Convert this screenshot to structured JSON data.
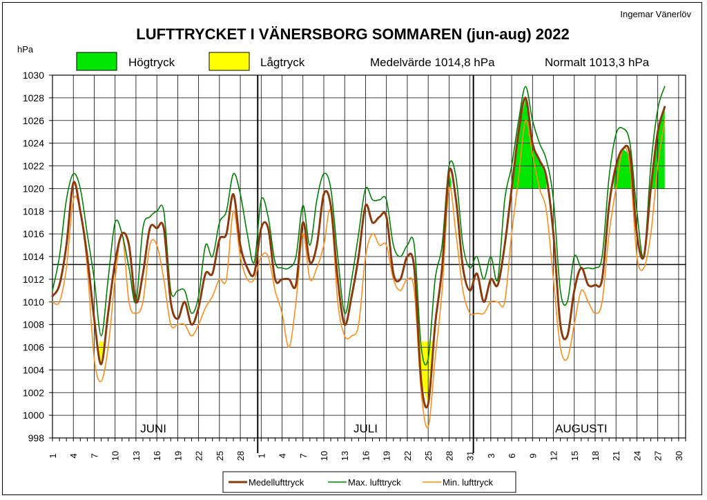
{
  "chart_data": {
    "type": "line",
    "title": "LUFTTRYCKET I VÄNERSBORG  SOMMAREN (jun-aug) 2022",
    "author": "Ingemar Vänerlöv",
    "ylabel": "hPa",
    "ylim": [
      998,
      1030
    ],
    "yticks": [
      998,
      1000,
      1002,
      1004,
      1006,
      1008,
      1010,
      1012,
      1014,
      1016,
      1018,
      1020,
      1022,
      1024,
      1026,
      1028,
      1030
    ],
    "months": [
      {
        "name": "JUNI",
        "days": 30
      },
      {
        "name": "JULI",
        "days": 31
      },
      {
        "name": "AUGUSTI",
        "days": 31
      }
    ],
    "xtick_labels": [
      "1",
      "4",
      "7",
      "10",
      "13",
      "16",
      "19",
      "22",
      "25",
      "28",
      "1",
      "4",
      "7",
      "10",
      "13",
      "16",
      "19",
      "22",
      "25",
      "28",
      "31",
      "3",
      "6",
      "9",
      "12",
      "15",
      "18",
      "21",
      "24",
      "27",
      "30"
    ],
    "legend_top": {
      "high_label": "Högtryck",
      "low_label": "Lågtryck",
      "mean_text": "Medelvärde 1014,8 hPa",
      "normal_text": "Normalt 1013,3 hPa"
    },
    "normal_value": 1013.3,
    "high_threshold": 1020,
    "low_threshold": 1006.5,
    "colors": {
      "mean": "#8B3A0E",
      "max": "#008000",
      "min": "#FF8C1A",
      "high_fill": "#00E600",
      "low_fill": "#FFFF00"
    },
    "series": [
      {
        "name": "Medellufttryck",
        "values": [
          1010.5,
          1011.5,
          1015,
          1020.5,
          1018,
          1014,
          1008.5,
          1004.5,
          1009,
          1013.5,
          1016,
          1015,
          1010,
          1012.5,
          1016.5,
          1016.5,
          1016.5,
          1010,
          1008.5,
          1010,
          1008,
          1009.5,
          1012.5,
          1012.5,
          1015.5,
          1016,
          1019.5,
          1015,
          1013,
          1012.5,
          1016.5,
          1016.5,
          1012,
          1012,
          1012,
          1011.5,
          1017,
          1013.5,
          1015,
          1019.5,
          1018.5,
          1012,
          1008,
          1010.5,
          1014,
          1018.5,
          1017,
          1017.5,
          1017.5,
          1012.5,
          1012,
          1014,
          1013,
          1003,
          1001,
          1008,
          1013,
          1021.5,
          1019,
          1013,
          1011,
          1012.5,
          1010,
          1012,
          1011.5,
          1015,
          1020,
          1025,
          1028,
          1024,
          1022.5,
          1021,
          1016,
          1008,
          1007,
          1011,
          1013,
          1011.5,
          1011.5,
          1012,
          1018.5,
          1022,
          1023.5,
          1023,
          1016,
          1014,
          1020,
          1025,
          1027.2
        ]
      },
      {
        "name": "Max. lufttryck",
        "values": [
          1011,
          1014,
          1019,
          1021.3,
          1020,
          1016,
          1012,
          1007,
          1012,
          1017,
          1016,
          1013,
          1010,
          1016.5,
          1017.5,
          1018,
          1018,
          1011,
          1011,
          1011,
          1009,
          1010.5,
          1015,
          1014,
          1017,
          1018,
          1021.3,
          1019.5,
          1016,
          1013.5,
          1019,
          1017.5,
          1013.5,
          1013,
          1013,
          1014,
          1018.5,
          1015,
          1019,
          1021.3,
          1020,
          1014,
          1009,
          1012,
          1016,
          1020,
          1019,
          1019,
          1019,
          1015,
          1014,
          1015,
          1015,
          1006,
          1005,
          1012,
          1015,
          1022,
          1021,
          1015,
          1013,
          1014,
          1012,
          1014,
          1012,
          1019,
          1022,
          1026,
          1029,
          1026,
          1024,
          1022.5,
          1019,
          1011,
          1010,
          1014,
          1013,
          1013,
          1013,
          1014,
          1021,
          1024.8,
          1025.3,
          1024,
          1018,
          1014,
          1022,
          1027,
          1029
        ]
      },
      {
        "name": "Min. lufttryck",
        "values": [
          1010,
          1010,
          1013,
          1019,
          1018,
          1013,
          1005,
          1003,
          1006,
          1012,
          1016,
          1010,
          1009,
          1010,
          1015,
          1015,
          1012,
          1008,
          1008,
          1008,
          1007,
          1008,
          1009.5,
          1010.5,
          1012,
          1012,
          1018,
          1014,
          1012,
          1012,
          1014,
          1014,
          1011,
          1009,
          1006,
          1010,
          1016,
          1012,
          1013,
          1015,
          1018,
          1010,
          1007,
          1007,
          1008,
          1014,
          1016,
          1015,
          1015,
          1012,
          1011,
          1012,
          1011,
          1002,
          999,
          1005,
          1011,
          1020,
          1016,
          1011,
          1009,
          1009,
          1009,
          1010,
          1010,
          1010,
          1016,
          1021,
          1026,
          1023,
          1020,
          1018,
          1012,
          1006,
          1005,
          1008,
          1011,
          1010,
          1009,
          1010,
          1016,
          1020,
          1023.5,
          1022,
          1014,
          1013,
          1016,
          1022,
          1026
        ]
      }
    ]
  }
}
